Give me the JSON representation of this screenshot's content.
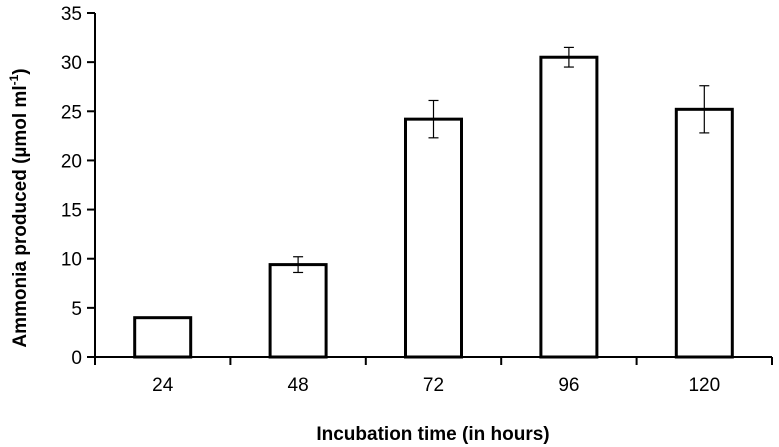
{
  "chart_data": {
    "type": "bar",
    "title": "",
    "xlabel": "Incubation time (in hours)",
    "ylabel": {
      "main": "Ammonia produced (µmol ml",
      "sup": "-1",
      "end": ")"
    },
    "categories": [
      "24",
      "48",
      "72",
      "96",
      "120"
    ],
    "values": [
      4,
      9.4,
      24.2,
      30.5,
      25.2
    ],
    "errors": [
      0,
      0.8,
      1.9,
      1.0,
      2.4
    ],
    "ylim": [
      0,
      35
    ],
    "yticks": [
      0,
      5,
      10,
      15,
      20,
      25,
      30,
      35
    ],
    "grid": false,
    "legend": "none",
    "colors": {
      "bar_fill": "#ffffff",
      "bar_stroke": "#000000",
      "axis": "#000000"
    }
  }
}
